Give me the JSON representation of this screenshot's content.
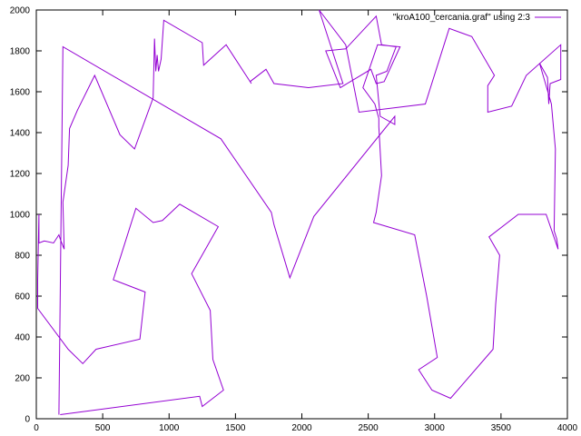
{
  "chart_data": {
    "type": "line",
    "title": "",
    "xlabel": "",
    "ylabel": "",
    "xlim": [
      0,
      4000
    ],
    "ylim": [
      0,
      2000
    ],
    "xticks": [
      0,
      500,
      1000,
      1500,
      2000,
      2500,
      3000,
      3500,
      4000
    ],
    "yticks": [
      0,
      200,
      400,
      600,
      800,
      1000,
      1200,
      1400,
      1600,
      1800,
      2000
    ],
    "grid": false,
    "legend_position": "top-right",
    "series": [
      {
        "name": "\"kroA100_cercania.graf\" using 2:3",
        "color": "#9400d3",
        "x": [
          170,
          200,
          1390,
          1770,
          1790,
          1910,
          2090,
          2700,
          2700,
          2590,
          2560,
          2640,
          2710,
          2600,
          2560,
          2330,
          2180,
          2290,
          2520,
          2560,
          2620,
          2740,
          2570,
          2460,
          2550,
          2580,
          2580,
          2600,
          2560,
          2540,
          2850,
          2940,
          3020,
          2880,
          2980,
          3120,
          3440,
          3460,
          3490,
          3410,
          3630,
          3840,
          3930,
          3920,
          3900,
          3910,
          3880,
          3790,
          3850,
          3860,
          3870,
          3950,
          3950,
          3690,
          3580,
          3400,
          3400,
          3450,
          3280,
          3110,
          2930,
          2430,
          2330,
          2130,
          2310,
          2050,
          1790,
          1730,
          1610,
          1620,
          1430,
          1260,
          1250,
          960,
          940,
          920,
          910,
          900,
          890,
          880,
          740,
          630,
          440,
          310,
          250,
          240,
          200,
          210,
          180,
          170,
          130,
          60,
          20,
          20,
          10,
          10,
          240,
          350,
          450,
          780,
          820,
          580,
          750,
          880,
          950,
          1080,
          1370,
          1170,
          1310,
          1330,
          1410,
          1250,
          1230,
          180
        ],
        "y": [
          20,
          1820,
          1370,
          1010,
          950,
          690,
          990,
          1480,
          1440,
          1480,
          1680,
          1700,
          1820,
          1830,
          1970,
          1810,
          1800,
          1620,
          1710,
          1640,
          1650,
          1820,
          1830,
          1620,
          1540,
          1470,
          1430,
          1190,
          1010,
          960,
          900,
          600,
          300,
          240,
          140,
          100,
          340,
          560,
          800,
          890,
          1000,
          1000,
          830,
          880,
          920,
          1320,
          1540,
          1740,
          1670,
          1540,
          1640,
          1660,
          1830,
          1680,
          1530,
          1500,
          1630,
          1680,
          1870,
          1910,
          1540,
          1500,
          1830,
          2000,
          1640,
          1620,
          1640,
          1710,
          1650,
          1640,
          1830,
          1730,
          1840,
          1950,
          1760,
          1700,
          1780,
          1700,
          1860,
          1570,
          1320,
          1390,
          1680,
          1510,
          1420,
          1240,
          1060,
          830,
          880,
          900,
          860,
          870,
          860,
          1000,
          680,
          540,
          340,
          270,
          340,
          390,
          620,
          680,
          1030,
          960,
          970,
          1050,
          940,
          710,
          530,
          290,
          140,
          60,
          110,
          20
        ]
      }
    ]
  }
}
